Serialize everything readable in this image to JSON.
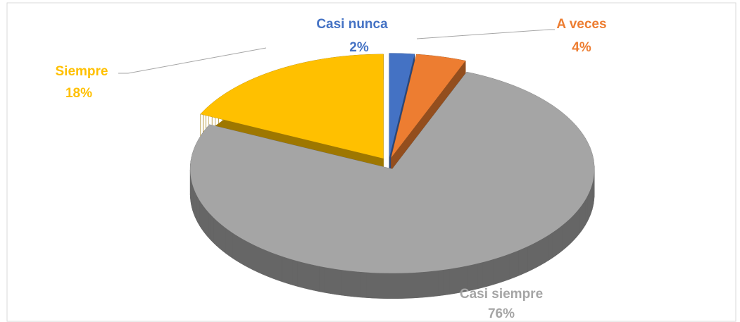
{
  "chart_data": {
    "type": "pie3d",
    "categories": [
      "Casi nunca",
      "A veces",
      "Casi siempre",
      "Siempre"
    ],
    "values": [
      2,
      4,
      76,
      18
    ],
    "value_labels": [
      "2%",
      "4%",
      "76%",
      "18%"
    ],
    "colors": [
      "#4472c4",
      "#ed7d31",
      "#a5a5a5",
      "#ffc000"
    ]
  }
}
